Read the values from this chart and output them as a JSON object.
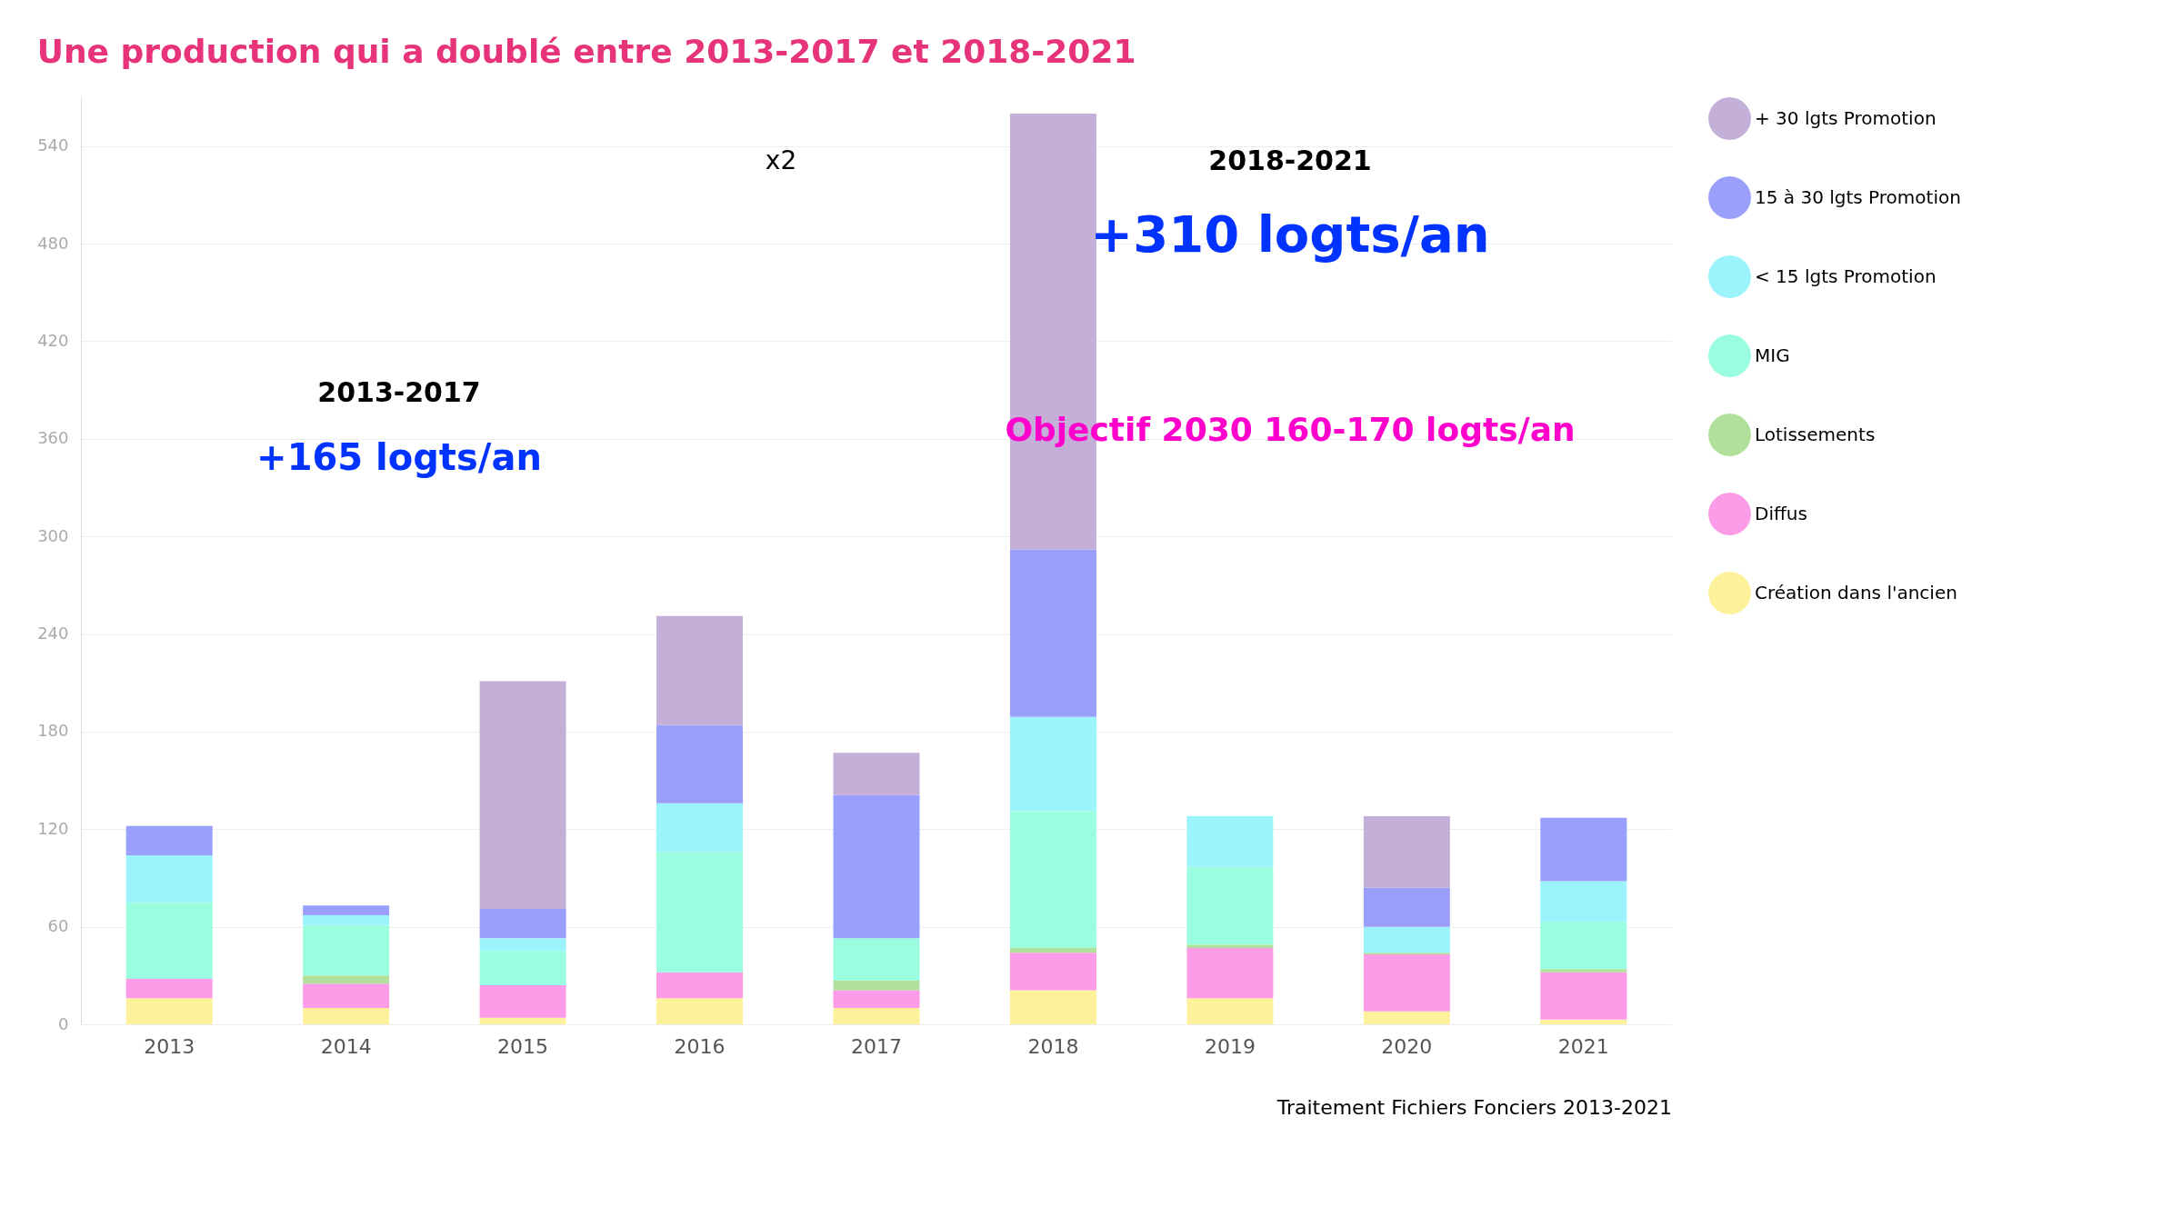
{
  "chart_data": {
    "type": "bar",
    "stacked": true,
    "title": "Une production qui a doublé entre 2013-2017 et 2018-2021",
    "categories": [
      "2013",
      "2014",
      "2015",
      "2016",
      "2017",
      "2018",
      "2019",
      "2020",
      "2021"
    ],
    "series": [
      {
        "name": "Création dans l'ancien",
        "color": "#fdf29b",
        "values": [
          16,
          10,
          4,
          16,
          10,
          21,
          16,
          8,
          3
        ]
      },
      {
        "name": "Diffus",
        "color": "#fc9ce8",
        "values": [
          12,
          15,
          20,
          16,
          11,
          23,
          31,
          35,
          29
        ]
      },
      {
        "name": "Lotissements",
        "color": "#b0e09a",
        "values": [
          0,
          5,
          0,
          0,
          6,
          3,
          2,
          1,
          2
        ]
      },
      {
        "name": "MIG",
        "color": "#9bfde0",
        "values": [
          47,
          31,
          21,
          74,
          26,
          84,
          48,
          null,
          29
        ]
      },
      {
        "name": "< 15 lgts Promotion",
        "color": "#9bf4fc",
        "values": [
          29,
          6,
          8,
          30,
          0,
          58,
          31,
          16,
          25
        ]
      },
      {
        "name": "15 à 30 lgts Promotion",
        "color": "#9b9ffc",
        "values": [
          18,
          6,
          18,
          48,
          88,
          103,
          null,
          24,
          39
        ]
      },
      {
        "name": "+ 30 lgts Promotion",
        "color": "#c4afd8",
        "values": [
          0,
          0,
          140,
          67,
          26,
          268,
          null,
          44,
          null
        ]
      }
    ],
    "ylim": [
      0,
      570
    ],
    "yticks": [
      0,
      60,
      120,
      180,
      240,
      300,
      360,
      420,
      480,
      540
    ],
    "grid": "y",
    "legend": "right",
    "annotations": [
      "x2",
      "2013-2017",
      "+165 logts/an",
      "2018-2021",
      "+310 logts/an",
      "Objectif 2030 160-170 logts/an",
      "Traitement Fichiers Fonciers 2013-2021"
    ]
  }
}
